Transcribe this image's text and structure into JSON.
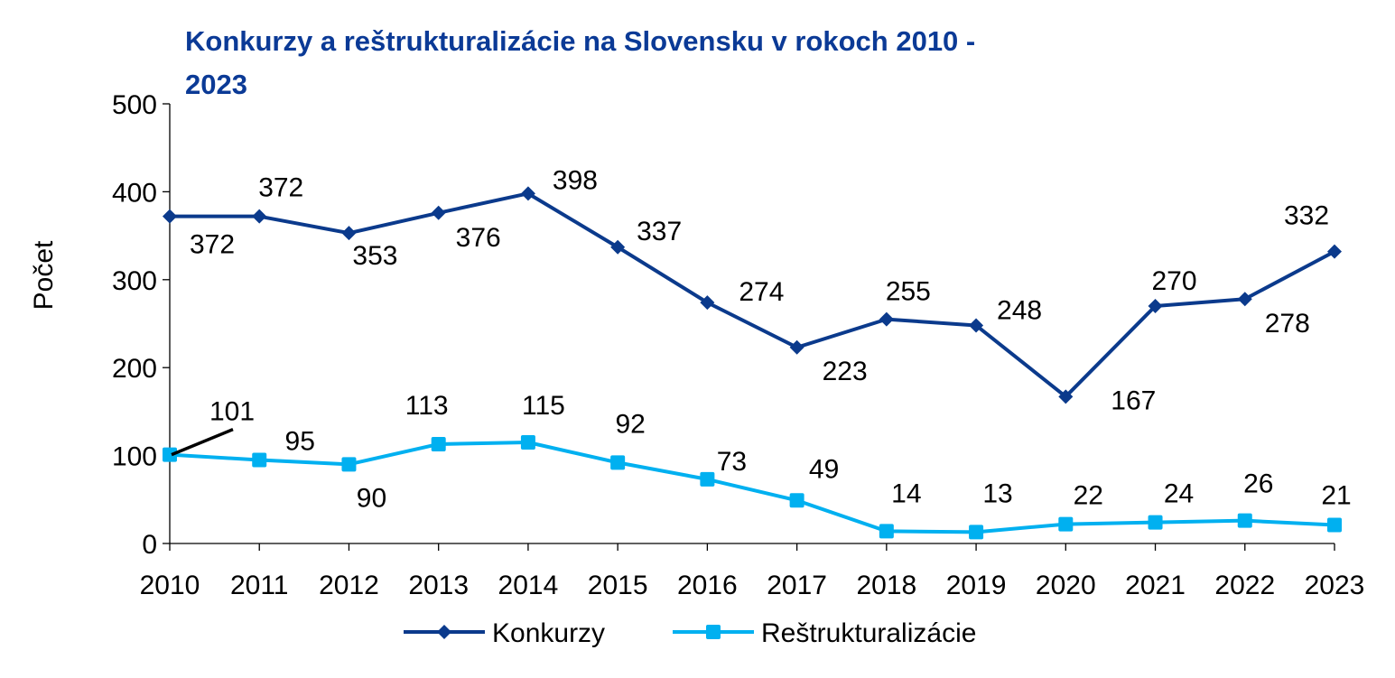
{
  "chart_data": {
    "type": "line",
    "title_lines": [
      "Konkurzy a reštrukturalizácie na Slovensku v rokoch 2010 -",
      "2023"
    ],
    "xlabel": "",
    "ylabel": "Počet",
    "ylim": [
      0,
      500
    ],
    "yticks": [
      0,
      100,
      200,
      300,
      400,
      500
    ],
    "x": [
      "2010",
      "2011",
      "2012",
      "2013",
      "2014",
      "2015",
      "2016",
      "2017",
      "2018",
      "2019",
      "2020",
      "2021",
      "2022",
      "2023"
    ],
    "grid": false,
    "legend_position": "bottom",
    "series": [
      {
        "name": "Konkurzy",
        "color": "#0b3a8c",
        "marker": "diamond",
        "values": [
          372,
          372,
          353,
          376,
          398,
          337,
          274,
          223,
          255,
          248,
          167,
          270,
          278,
          332
        ]
      },
      {
        "name": "Reštrukturalizácie",
        "color": "#00b0f0",
        "marker": "square",
        "values": [
          101,
          95,
          90,
          113,
          115,
          92,
          73,
          49,
          14,
          13,
          22,
          24,
          26,
          21
        ]
      }
    ]
  }
}
